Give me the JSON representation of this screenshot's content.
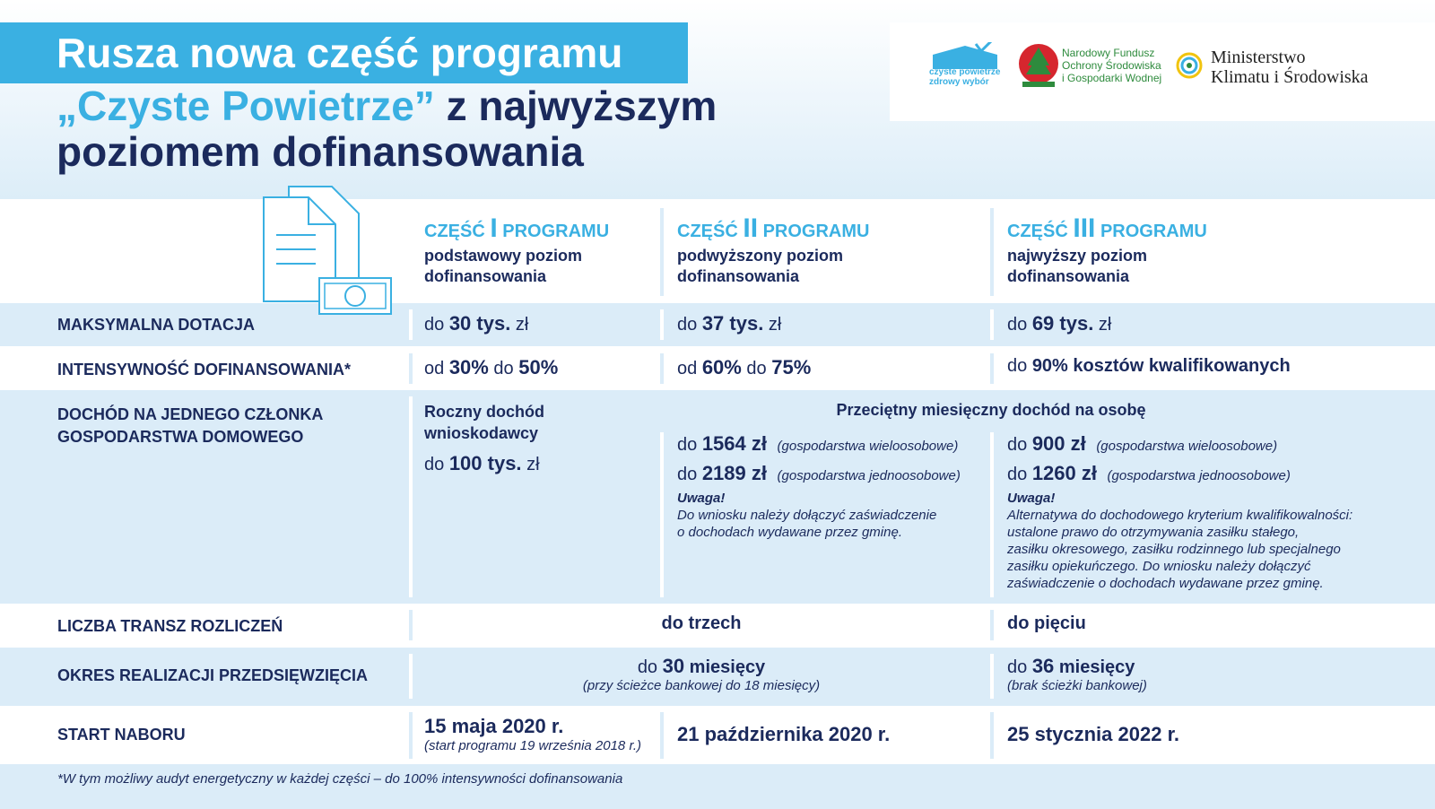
{
  "header": {
    "title_line1": "Rusza nowa część programu",
    "title_highlight": "„Czyste Powietrze”",
    "title_line2": "z najwyższym",
    "title_line3": "poziomem dofinansowania"
  },
  "logos": {
    "czyste_powietrze": [
      "czyste powietrze",
      "zdrowy wybór"
    ],
    "nfosigw": [
      "Narodowy Fundusz",
      "Ochrony Środowiska",
      "i Gospodarki Wodnej"
    ],
    "ministry": [
      "Ministerstwo",
      "Klimatu i Środowiska"
    ]
  },
  "columns": [
    {
      "label_a": "CZĘŚĆ",
      "numeral": "I",
      "label_b": "PROGRAMU",
      "description": [
        "podstawowy poziom",
        "dofinansowania"
      ]
    },
    {
      "label_a": "CZĘŚĆ",
      "numeral": "II",
      "label_b": "PROGRAMU",
      "description": [
        "podwyższony poziom",
        "dofinansowania"
      ]
    },
    {
      "label_a": "CZĘŚĆ",
      "numeral": "III",
      "label_b": "PROGRAMU",
      "description": [
        "najwyższy poziom",
        "dofinansowania"
      ]
    }
  ],
  "rows": {
    "max_grant": {
      "label": "MAKSYMALNA DOTACJA",
      "cells": [
        {
          "prefix": "do",
          "value": "30 tys.",
          "suffix": "zł"
        },
        {
          "prefix": "do",
          "value": "37 tys.",
          "suffix": "zł"
        },
        {
          "prefix": "do",
          "value": "69 tys.",
          "suffix": "zł"
        }
      ]
    },
    "intensity": {
      "label": "INTENSYWNOŚĆ DOFINANSOWANIA*",
      "cells": [
        {
          "from": "od",
          "min": "30%",
          "to": "do",
          "max": "50%"
        },
        {
          "from": "od",
          "min": "60%",
          "to": "do",
          "max": "75%"
        },
        {
          "to": "do",
          "max": "90% kosztów kwalifikowanych"
        }
      ]
    },
    "income": {
      "label": [
        "DOCHÓD NA JEDNEGO CZŁONKA",
        "GOSPODARSTWA DOMOWEGO"
      ],
      "part1": {
        "heading": [
          "Roczny dochód",
          "wnioskodawcy"
        ],
        "prefix": "do",
        "value": "100 tys.",
        "suffix": "zł"
      },
      "shared_heading": "Przeciętny miesięczny dochód na osobę",
      "part2": {
        "amounts": [
          {
            "prefix": "do",
            "value": "1564 zł",
            "note": "(gospodarstwa wieloosobowe)"
          },
          {
            "prefix": "do",
            "value": "2189 zł",
            "note": "(gospodarstwa jednoosobowe)"
          }
        ],
        "note_title": "Uwaga!",
        "note_lines": [
          "Do wniosku należy dołączyć zaświadczenie",
          "o dochodach wydawane przez gminę."
        ]
      },
      "part3": {
        "amounts": [
          {
            "prefix": "do",
            "value": "900 zł",
            "note": "(gospodarstwa wieloosobowe)"
          },
          {
            "prefix": "do",
            "value": "1260 zł",
            "note": "(gospodarstwa jednoosobowe)"
          }
        ],
        "note_title": "Uwaga!",
        "note_lines": [
          "Alternatywa do dochodowego kryterium kwalifikowalności:",
          "ustalone prawo do otrzymywania zasiłku stałego,",
          "zasiłku okresowego, zasiłku rodzinnego lub specjalnego",
          "zasiłku opiekuńczego. Do wniosku należy dołączyć",
          "zaświadczenie o dochodach wydawane przez gminę."
        ]
      }
    },
    "installments": {
      "label": "LICZBA TRANSZ ROZLICZEŃ",
      "shared": "do trzech",
      "part3": "do pięciu"
    },
    "period": {
      "label": "OKRES REALIZACJI PRZEDSIĘWZIĘCIA",
      "shared": {
        "prefix": "do",
        "value": "30",
        "suffix": "miesięcy",
        "note": "(przy ścieżce bankowej do 18 miesięcy)"
      },
      "part3": {
        "prefix": "do",
        "value": "36",
        "suffix": "miesięcy",
        "note": "(brak ścieżki bankowej)"
      }
    },
    "start": {
      "label": "START NABORU",
      "cells": [
        {
          "date": "15 maja 2020 r.",
          "note": "(start programu 19 września 2018 r.)"
        },
        {
          "date": "21 października 2020 r."
        },
        {
          "date": "25 stycznia 2022 r."
        }
      ]
    }
  },
  "footnote": "*W tym możliwy audyt energetyczny w każdej części – do 100% intensywności dofinansowania"
}
